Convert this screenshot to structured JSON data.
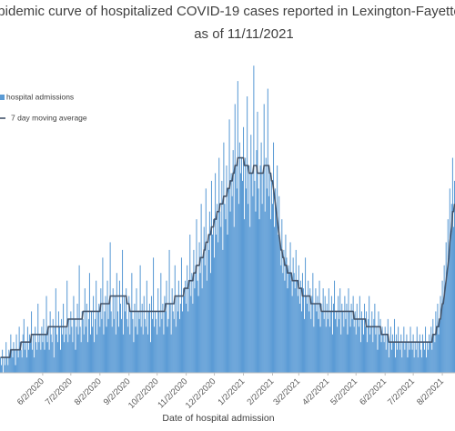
{
  "chart_data": {
    "type": "bar",
    "title": "pidemic curve of hospitalized COVID-19 cases reported in Lexington-Fayette",
    "subtitle": "as of 11/11/2021",
    "x_label": "Date of hospital admission",
    "legend": "top-left",
    "ylim": [
      0,
      45
    ],
    "categories": [
      null,
      null,
      null,
      null,
      null,
      null,
      null,
      null,
      null,
      null,
      null,
      null,
      null,
      null,
      null,
      null,
      null,
      null,
      null,
      null,
      null,
      null,
      null,
      null,
      null,
      null,
      null,
      null,
      null,
      null,
      null,
      null,
      null,
      null,
      null,
      null,
      null,
      null,
      null,
      null,
      null,
      null,
      null,
      null,
      null,
      "6/2/2020",
      null,
      null,
      null,
      null,
      null,
      null,
      null,
      null,
      null,
      null,
      null,
      null,
      null,
      null,
      null,
      null,
      null,
      null,
      null,
      null,
      null,
      null,
      null,
      null,
      null,
      null,
      null,
      null,
      null,
      "7/2/2020",
      null,
      null,
      null,
      null,
      null,
      null,
      null,
      null,
      null,
      null,
      null,
      null,
      null,
      null,
      null,
      null,
      null,
      null,
      null,
      null,
      null,
      null,
      null,
      null,
      null,
      null,
      null,
      null,
      null,
      null,
      "8/2/2020",
      null,
      null,
      null,
      null,
      null,
      null,
      null,
      null,
      null,
      null,
      null,
      null,
      null,
      null,
      null,
      null,
      null,
      null,
      null,
      null,
      null,
      null,
      null,
      null,
      null,
      null,
      null,
      null,
      null,
      null,
      "9/2/2020",
      null,
      null,
      null,
      null,
      null,
      null,
      null,
      null,
      null,
      null,
      null,
      null,
      null,
      null,
      null,
      null,
      null,
      null,
      null,
      null,
      null,
      null,
      null,
      null,
      null,
      null,
      null,
      null,
      null,
      "10/2/2020",
      null,
      null,
      null,
      null,
      null,
      null,
      null,
      null,
      null,
      null,
      null,
      null,
      null,
      null,
      null,
      null,
      null,
      null,
      null,
      null,
      null,
      null,
      null,
      null,
      null,
      null,
      null,
      null,
      null,
      null,
      "11/2/2020",
      null,
      null,
      null,
      null,
      null,
      null,
      null,
      null,
      null,
      null,
      null,
      null,
      null,
      null,
      null,
      null,
      null,
      null,
      null,
      null,
      null,
      null,
      null,
      null,
      null,
      null,
      null,
      null,
      null,
      "12/2/2020",
      null,
      null,
      null,
      null,
      null,
      null,
      null,
      null,
      null,
      null,
      null,
      null,
      null,
      null,
      null,
      null,
      null,
      null,
      null,
      null,
      null,
      null,
      null,
      null,
      null,
      null,
      null,
      null,
      null,
      null,
      "1/2/2021",
      null,
      null,
      null,
      null,
      null,
      null,
      null,
      null,
      null,
      null,
      null,
      null,
      null,
      null,
      null,
      null,
      null,
      null,
      null,
      null,
      null,
      null,
      null,
      null,
      null,
      null,
      null,
      null,
      null,
      null,
      "2/2/2021",
      null,
      null,
      null,
      null,
      null,
      null,
      null,
      null,
      null,
      null,
      null,
      null,
      null,
      null,
      null,
      null,
      null,
      null,
      null,
      null,
      null,
      null,
      null,
      null,
      null,
      null,
      null,
      "3/2/2021",
      null,
      null,
      null,
      null,
      null,
      null,
      null,
      null,
      null,
      null,
      null,
      null,
      null,
      null,
      null,
      null,
      null,
      null,
      null,
      null,
      null,
      null,
      null,
      null,
      null,
      null,
      null,
      null,
      null,
      null,
      "4/2/2021",
      null,
      null,
      null,
      null,
      null,
      null,
      null,
      null,
      null,
      null,
      null,
      null,
      null,
      null,
      null,
      null,
      null,
      null,
      null,
      null,
      null,
      null,
      null,
      null,
      null,
      null,
      null,
      null,
      null,
      "5/2/2021",
      null,
      null,
      null,
      null,
      null,
      null,
      null,
      null,
      null,
      null,
      null,
      null,
      null,
      null,
      null,
      null,
      null,
      null,
      null,
      null,
      null,
      null,
      null,
      null,
      null,
      null,
      null,
      null,
      null,
      null,
      "6/2/2021",
      null,
      null,
      null,
      null,
      null,
      null,
      null,
      null,
      null,
      null,
      null,
      null,
      null,
      null,
      null,
      null,
      null,
      null,
      null,
      null,
      null,
      null,
      null,
      null,
      null,
      null,
      null,
      null,
      null,
      "7/2/2021",
      null,
      null,
      null,
      null,
      null,
      null,
      null,
      null,
      null,
      null,
      null,
      null,
      null,
      null,
      null,
      null,
      null,
      null,
      null,
      null,
      null,
      null,
      null,
      null,
      null,
      null,
      null,
      null,
      null,
      null,
      "8/2/2021",
      null,
      null,
      null,
      null,
      null,
      null,
      null,
      null,
      null,
      null,
      null,
      null,
      null
    ],
    "series": [
      {
        "name": "hospital admissions",
        "type": "bar",
        "color": "#5b9bd5",
        "values": [
          2,
          1,
          3,
          0,
          2,
          1,
          4,
          2,
          1,
          3,
          2,
          5,
          3,
          2,
          4,
          3,
          1,
          5,
          3,
          2,
          6,
          4,
          3,
          2,
          5,
          7,
          3,
          4,
          2,
          6,
          3,
          5,
          4,
          8,
          3,
          5,
          2,
          6,
          4,
          3,
          9,
          4,
          5,
          3,
          6,
          4,
          7,
          3,
          5,
          10,
          4,
          6,
          3,
          8,
          5,
          4,
          7,
          2,
          6,
          11,
          5,
          4,
          8,
          6,
          3,
          7,
          5,
          9,
          4,
          6,
          5,
          12,
          4,
          7,
          5,
          8,
          6,
          4,
          10,
          7,
          3,
          6,
          9,
          5,
          14,
          6,
          4,
          8,
          7,
          5,
          11,
          6,
          9,
          4,
          7,
          13,
          5,
          8,
          6,
          10,
          4,
          7,
          12,
          5,
          8,
          9,
          6,
          11,
          7,
          15,
          5,
          8,
          10,
          6,
          12,
          7,
          9,
          17,
          8,
          6,
          11,
          7,
          10,
          5,
          13,
          8,
          6,
          12,
          9,
          7,
          16,
          5,
          10,
          8,
          11,
          7,
          6,
          10,
          5,
          8,
          13,
          7,
          4,
          9,
          6,
          11,
          5,
          8,
          7,
          14,
          6,
          9,
          5,
          10,
          7,
          6,
          12,
          5,
          8,
          9,
          4,
          10,
          7,
          15,
          6,
          8,
          7,
          5,
          11,
          8,
          6,
          13,
          7,
          9,
          5,
          10,
          8,
          12,
          6,
          7,
          16,
          9,
          5,
          11,
          8,
          7,
          14,
          6,
          10,
          8,
          12,
          7,
          9,
          15,
          8,
          11,
          10,
          12,
          9,
          14,
          8,
          11,
          18,
          10,
          13,
          9,
          16,
          11,
          14,
          20,
          12,
          10,
          17,
          13,
          22,
          11,
          15,
          19,
          14,
          24,
          12,
          17,
          16,
          21,
          13,
          25,
          18,
          20,
          15,
          26,
          18,
          22,
          17,
          28,
          21,
          19,
          25,
          16,
          30,
          22,
          20,
          27,
          18,
          24,
          33,
          21,
          26,
          23,
          29,
          19,
          35,
          27,
          24,
          38,
          22,
          30,
          26,
          28,
          25,
          32,
          20,
          28,
          24,
          36,
          22,
          27,
          19,
          31,
          26,
          23,
          40,
          25,
          21,
          29,
          34,
          24,
          20,
          27,
          30,
          22,
          26,
          35,
          21,
          28,
          24,
          37,
          23,
          26,
          20,
          25,
          22,
          30,
          19,
          24,
          21,
          27,
          18,
          23,
          17,
          14,
          20,
          13,
          16,
          12,
          18,
          15,
          11,
          14,
          13,
          17,
          12,
          10,
          15,
          13,
          11,
          16,
          12,
          10,
          14,
          9,
          12,
          8,
          13,
          11,
          7,
          15,
          10,
          9,
          12,
          8,
          11,
          7,
          10,
          13,
          6,
          9,
          11,
          8,
          10,
          7,
          12,
          6,
          9,
          8,
          11,
          7,
          10,
          6,
          9,
          7,
          11,
          6,
          8,
          10,
          5,
          9,
          12,
          7,
          8,
          6,
          10,
          7,
          11,
          5,
          9,
          8,
          6,
          10,
          7,
          9,
          5,
          11,
          8,
          6,
          9,
          7,
          10,
          6,
          8,
          5,
          9,
          7,
          6,
          10,
          4,
          8,
          7,
          5,
          9,
          6,
          8,
          4,
          7,
          10,
          5,
          6,
          8,
          4,
          7,
          9,
          5,
          6,
          3,
          8,
          5,
          7,
          4,
          6,
          5,
          4,
          6,
          3,
          5,
          7,
          2,
          4,
          6,
          3,
          5,
          4,
          7,
          2,
          5,
          3,
          6,
          4,
          3,
          5,
          2,
          4,
          6,
          3,
          4,
          5,
          2,
          4,
          3,
          6,
          4,
          3,
          5,
          2,
          4,
          3,
          6,
          2,
          4,
          5,
          3,
          2,
          5,
          4,
          3,
          6,
          2,
          4,
          3,
          5,
          4,
          6,
          3,
          7,
          5,
          4,
          8,
          6,
          9,
          5,
          7,
          10,
          8,
          12,
          9,
          14,
          11,
          17,
          13,
          20,
          15,
          24,
          18,
          22,
          28,
          19,
          25
        ]
      },
      {
        "name": "7 day moving average",
        "type": "line",
        "color": "#44546a",
        "values": [
          2,
          2,
          2,
          2,
          2,
          2,
          2,
          2,
          2,
          2,
          2,
          3,
          3,
          3,
          3,
          3,
          3,
          3,
          3,
          3,
          3,
          3,
          4,
          4,
          4,
          4,
          4,
          4,
          4,
          4,
          4,
          4,
          4,
          5,
          5,
          5,
          5,
          5,
          5,
          5,
          5,
          5,
          5,
          5,
          5,
          5,
          5,
          5,
          5,
          5,
          5,
          6,
          6,
          6,
          6,
          6,
          6,
          6,
          6,
          6,
          6,
          6,
          6,
          6,
          6,
          6,
          6,
          6,
          6,
          6,
          6,
          6,
          7,
          7,
          7,
          7,
          7,
          7,
          7,
          7,
          7,
          7,
          7,
          7,
          7,
          7,
          7,
          7,
          8,
          8,
          8,
          8,
          8,
          8,
          8,
          8,
          8,
          8,
          8,
          8,
          8,
          8,
          8,
          8,
          8,
          8,
          8,
          9,
          9,
          9,
          9,
          9,
          9,
          9,
          9,
          9,
          9,
          10,
          10,
          10,
          10,
          10,
          10,
          10,
          10,
          10,
          10,
          10,
          10,
          10,
          10,
          10,
          10,
          10,
          10,
          9,
          9,
          9,
          8,
          8,
          8,
          8,
          8,
          8,
          8,
          8,
          8,
          8,
          8,
          8,
          8,
          8,
          8,
          8,
          8,
          8,
          8,
          8,
          8,
          8,
          8,
          8,
          8,
          8,
          8,
          8,
          8,
          8,
          8,
          8,
          8,
          8,
          8,
          8,
          8,
          8,
          9,
          9,
          9,
          9,
          9,
          9,
          9,
          9,
          9,
          9,
          10,
          10,
          10,
          10,
          10,
          10,
          10,
          10,
          10,
          10,
          11,
          11,
          11,
          11,
          11,
          12,
          12,
          12,
          12,
          12,
          13,
          13,
          13,
          14,
          14,
          14,
          14,
          15,
          15,
          15,
          15,
          16,
          16,
          17,
          17,
          17,
          18,
          18,
          18,
          19,
          19,
          19,
          20,
          20,
          20,
          21,
          21,
          21,
          22,
          22,
          22,
          22,
          23,
          23,
          23,
          23,
          24,
          24,
          24,
          25,
          25,
          25,
          26,
          26,
          27,
          27,
          27,
          28,
          28,
          28,
          28,
          28,
          28,
          28,
          27,
          27,
          27,
          27,
          27,
          26,
          26,
          26,
          26,
          26,
          27,
          27,
          27,
          27,
          26,
          26,
          26,
          26,
          26,
          26,
          26,
          27,
          27,
          27,
          27,
          27,
          27,
          26,
          26,
          25,
          25,
          24,
          23,
          22,
          21,
          20,
          19,
          18,
          17,
          16,
          16,
          15,
          15,
          14,
          14,
          14,
          13,
          13,
          13,
          13,
          13,
          12,
          12,
          12,
          12,
          12,
          12,
          12,
          11,
          11,
          11,
          11,
          10,
          10,
          10,
          10,
          10,
          10,
          10,
          10,
          10,
          9,
          9,
          9,
          9,
          9,
          9,
          9,
          9,
          9,
          9,
          9,
          8,
          8,
          8,
          8,
          8,
          8,
          8,
          8,
          8,
          8,
          8,
          8,
          8,
          8,
          8,
          8,
          8,
          8,
          8,
          8,
          8,
          8,
          8,
          8,
          8,
          8,
          8,
          8,
          8,
          8,
          8,
          8,
          8,
          8,
          8,
          7,
          7,
          7,
          7,
          7,
          7,
          7,
          7,
          7,
          7,
          7,
          7,
          7,
          6,
          6,
          6,
          6,
          6,
          6,
          6,
          6,
          6,
          6,
          6,
          6,
          6,
          6,
          6,
          6,
          5,
          5,
          5,
          5,
          5,
          5,
          5,
          5,
          4,
          4,
          4,
          4,
          4,
          4,
          4,
          4,
          4,
          4,
          4,
          4,
          4,
          4,
          4,
          4,
          4,
          4,
          4,
          4,
          4,
          4,
          4,
          4,
          4,
          4,
          4,
          4,
          4,
          4,
          4,
          4,
          4,
          4,
          4,
          4,
          4,
          4,
          4,
          4,
          4,
          4,
          4,
          4,
          4,
          4,
          4,
          5,
          5,
          5,
          5,
          6,
          6,
          6,
          7,
          7,
          8,
          9,
          9,
          10,
          11,
          12,
          13,
          14,
          15,
          17,
          18,
          19,
          21,
          21,
          22
        ]
      }
    ]
  }
}
